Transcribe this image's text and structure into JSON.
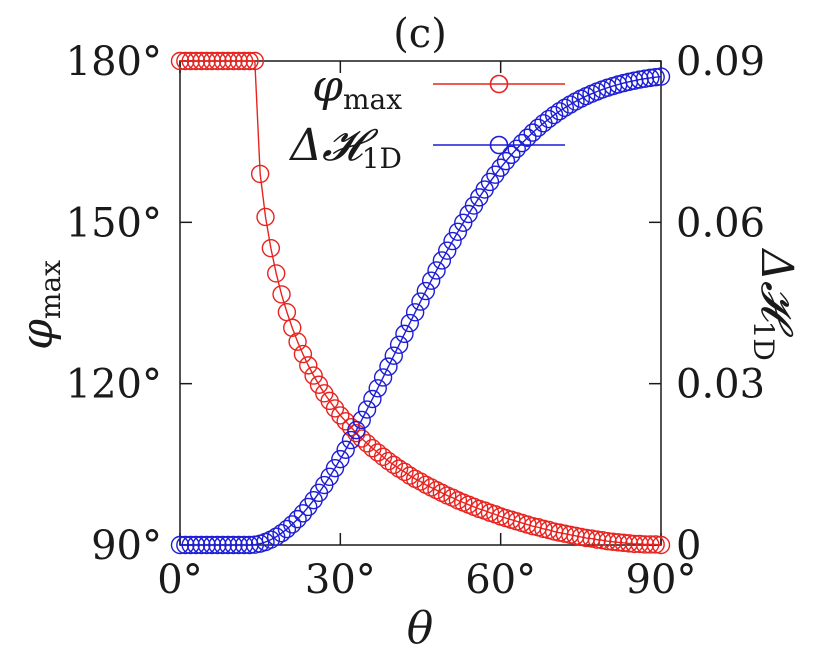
{
  "chart_data": {
    "type": "scatter",
    "panel_label": "(c)",
    "xlabel": "θ",
    "ylabel_left": {
      "main": "φ",
      "sub": "max"
    },
    "ylabel_right": {
      "main": "Δ𝓗",
      "sub": "1D"
    },
    "xlim": [
      0,
      90
    ],
    "ylim_left": [
      90,
      180
    ],
    "ylim_right": [
      0,
      0.09
    ],
    "x_ticks": [
      0,
      30,
      60,
      90
    ],
    "x_tick_labels": [
      "0°",
      "30°",
      "60°",
      "90°"
    ],
    "y_left_ticks": [
      90,
      120,
      150,
      180
    ],
    "y_left_tick_labels": [
      "90°",
      "120°",
      "150°",
      "180°"
    ],
    "y_right_ticks": [
      0,
      0.03,
      0.06,
      0.09
    ],
    "y_right_tick_labels": [
      "0",
      "0.03",
      "0.06",
      "0.09"
    ],
    "legend_position": "top-right",
    "x": [
      0,
      1,
      2,
      3,
      4,
      5,
      6,
      7,
      8,
      9,
      10,
      11,
      12,
      13,
      14,
      15,
      16,
      17,
      18,
      19,
      20,
      21,
      22,
      23,
      24,
      25,
      26,
      27,
      28,
      29,
      30,
      31,
      32,
      33,
      34,
      35,
      36,
      37,
      38,
      39,
      40,
      41,
      42,
      43,
      44,
      45,
      46,
      47,
      48,
      49,
      50,
      51,
      52,
      53,
      54,
      55,
      56,
      57,
      58,
      59,
      60,
      61,
      62,
      63,
      64,
      65,
      66,
      67,
      68,
      69,
      70,
      71,
      72,
      73,
      74,
      75,
      76,
      77,
      78,
      79,
      80,
      81,
      82,
      83,
      84,
      85,
      86,
      87,
      88,
      89,
      90
    ],
    "series": [
      {
        "name": {
          "main": "φ",
          "sub": "max"
        },
        "axis": "left",
        "color": "#e8231f",
        "values": [
          180,
          180,
          180,
          180,
          180,
          180,
          180,
          180,
          180,
          180,
          180,
          180,
          180,
          180,
          180,
          159,
          151,
          145.2,
          140.5,
          136.6,
          133.3,
          130.4,
          127.8,
          125.5,
          123.4,
          121.5,
          119.8,
          118.2,
          116.8,
          115.4,
          114.1,
          113,
          111.9,
          110.8,
          109.8,
          108.9,
          108,
          107.2,
          106.4,
          105.6,
          104.9,
          104.2,
          103.6,
          102.9,
          102.3,
          101.8,
          101.2,
          100.7,
          100.2,
          99.7,
          99.2,
          98.8,
          98.3,
          97.9,
          97.5,
          97.1,
          96.7,
          96.4,
          96,
          95.7,
          95.3,
          95,
          94.7,
          94.4,
          94.1,
          93.8,
          93.5,
          93.3,
          93,
          92.8,
          92.5,
          92.3,
          92.1,
          91.9,
          91.7,
          91.5,
          91.3,
          91.2,
          91,
          90.9,
          90.7,
          90.6,
          90.5,
          90.4,
          90.3,
          90.2,
          90.2,
          90.1,
          90.1,
          90.1,
          90
        ]
      },
      {
        "name": {
          "main": "Δ𝓗",
          "sub": "1D"
        },
        "axis": "right",
        "color": "#1d1dd6",
        "values": [
          0,
          0,
          0,
          0,
          0,
          0,
          0,
          0,
          0,
          0,
          0,
          0,
          0,
          0,
          6e-05,
          0.00025,
          0.00056,
          0.00099,
          0.00154,
          0.00219,
          0.00296,
          0.00383,
          0.00481,
          0.00589,
          0.00707,
          0.00834,
          0.0097,
          0.01115,
          0.01268,
          0.01429,
          0.01597,
          0.01771,
          0.01951,
          0.02136,
          0.02325,
          0.02519,
          0.02715,
          0.02914,
          0.03115,
          0.03317,
          0.0352,
          0.03723,
          0.03926,
          0.04127,
          0.04327,
          0.04526,
          0.04722,
          0.04915,
          0.05105,
          0.05291,
          0.05473,
          0.05651,
          0.05824,
          0.05992,
          0.06155,
          0.06312,
          0.06464,
          0.0661,
          0.06751,
          0.06886,
          0.07015,
          0.07138,
          0.07255,
          0.07367,
          0.07473,
          0.07573,
          0.07668,
          0.07758,
          0.07842,
          0.07921,
          0.07995,
          0.08065,
          0.0813,
          0.0819,
          0.08246,
          0.08298,
          0.08346,
          0.0839,
          0.08431,
          0.08469,
          0.08503,
          0.08534,
          0.08563,
          0.08589,
          0.08613,
          0.08634,
          0.08654,
          0.08671,
          0.08686,
          0.08699,
          0.0871
        ]
      }
    ]
  }
}
